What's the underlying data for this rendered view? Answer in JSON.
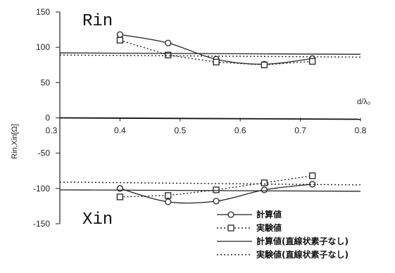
{
  "chart_data": {
    "type": "line",
    "xlabel": "d/λ₀",
    "ylabel": "Rin,Xin[Ω]",
    "xlim": [
      0.3,
      0.8
    ],
    "ylim": [
      -150,
      150
    ],
    "x_ticks": [
      "0.3",
      "0.4",
      "0.5",
      "0.6",
      "0.7",
      "0.8"
    ],
    "y_ticks": [
      "150",
      "100",
      "50",
      "0",
      "-50",
      "-100",
      "-150"
    ],
    "annotations": [
      "Rin",
      "Xin"
    ],
    "legend_position": "bottom-right",
    "series": [
      {
        "name": "計算値",
        "quantity": "Rin",
        "style": "solid-circle",
        "x": [
          0.4,
          0.48,
          0.56,
          0.64,
          0.72
        ],
        "y": [
          118,
          106,
          83,
          76,
          84
        ]
      },
      {
        "name": "実験値",
        "quantity": "Rin",
        "style": "dotted-square",
        "x": [
          0.4,
          0.48,
          0.56,
          0.64,
          0.72
        ],
        "y": [
          110,
          89,
          79,
          75,
          80
        ]
      },
      {
        "name": "計算値(直線状素子なし)",
        "quantity": "Rin",
        "style": "solid",
        "x": [
          0.3,
          0.8
        ],
        "y": [
          92,
          90
        ]
      },
      {
        "name": "実験値(直線状素子なし)",
        "quantity": "Rin",
        "style": "dotted",
        "x": [
          0.3,
          0.8
        ],
        "y": [
          89,
          86
        ]
      },
      {
        "name": "計算値",
        "quantity": "Xin",
        "style": "solid-circle",
        "x": [
          0.4,
          0.48,
          0.56,
          0.64,
          0.72
        ],
        "y": [
          -100,
          -119,
          -118,
          -102,
          -94
        ]
      },
      {
        "name": "実験値",
        "quantity": "Xin",
        "style": "dotted-square",
        "x": [
          0.4,
          0.48,
          0.56,
          0.64,
          0.72
        ],
        "y": [
          -112,
          -110,
          -102,
          -92,
          -82
        ]
      },
      {
        "name": "計算値(直線状素子なし)",
        "quantity": "Xin",
        "style": "solid",
        "x": [
          0.3,
          0.8
        ],
        "y": [
          -102,
          -104
        ]
      },
      {
        "name": "実験値(直線状素子なし)",
        "quantity": "Xin",
        "style": "dotted",
        "x": [
          0.3,
          0.8
        ],
        "y": [
          -91,
          -95
        ]
      }
    ],
    "legend": [
      {
        "label": "計算値",
        "style": "solid-circle"
      },
      {
        "label": "実験値",
        "style": "dotted-square"
      },
      {
        "label": "計算値(直線状素子なし)",
        "style": "solid"
      },
      {
        "label": "実験値(直線状素子なし)",
        "style": "dotted"
      }
    ]
  }
}
